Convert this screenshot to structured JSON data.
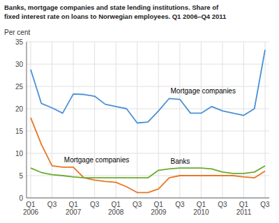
{
  "chart_data": {
    "type": "line",
    "title": "Banks, mortgage companies and state lending institutions. Share of\nfixed interest rate on loans to Norwegian employees. Q1 2006–Q4 2011",
    "ylabel": "Per cent",
    "categories": [
      "Q1\n2006",
      null,
      "Q3",
      null,
      "Q1\n2007",
      null,
      "Q3",
      null,
      "Q1\n2008",
      null,
      "Q3",
      null,
      "Q1\n2009",
      null,
      "Q3",
      null,
      "Q1\n2010",
      null,
      "Q3",
      null,
      "Q1\n2011",
      null,
      "Q3"
    ],
    "series": [
      {
        "color": "#4a90d9",
        "values": [
          28.8,
          21.2,
          20.2,
          19.0,
          23.3,
          23.2,
          22.8,
          21.0,
          20.5,
          20.0,
          16.8,
          17.0,
          19.5,
          22.3,
          22.1,
          19.0,
          19.0,
          20.5,
          19.5,
          19.0,
          18.5,
          20.0,
          33.2
        ]
      },
      {
        "color": "#e87722",
        "values": [
          18.0,
          12.0,
          7.2,
          6.9,
          6.9,
          4.5,
          4.0,
          3.7,
          3.5,
          2.5,
          1.2,
          1.2,
          2.0,
          4.5,
          5.0,
          5.0,
          5.0,
          5.0,
          5.0,
          5.0,
          4.7,
          4.5,
          6.0
        ]
      },
      {
        "color": "#6aab2e",
        "values": [
          6.7,
          5.7,
          5.2,
          5.0,
          4.7,
          4.5,
          4.5,
          4.5,
          4.5,
          4.5,
          4.5,
          4.5,
          6.2,
          6.5,
          6.7,
          6.7,
          6.7,
          6.5,
          5.8,
          5.5,
          5.5,
          5.8,
          7.2
        ]
      }
    ],
    "annotations": [
      "Mortgage companies",
      "Mortgage companies",
      "Banks"
    ],
    "ylim": [
      0,
      35
    ],
    "yticks": [
      0,
      5,
      10,
      15,
      20,
      25,
      30,
      35
    ],
    "grid": true
  }
}
